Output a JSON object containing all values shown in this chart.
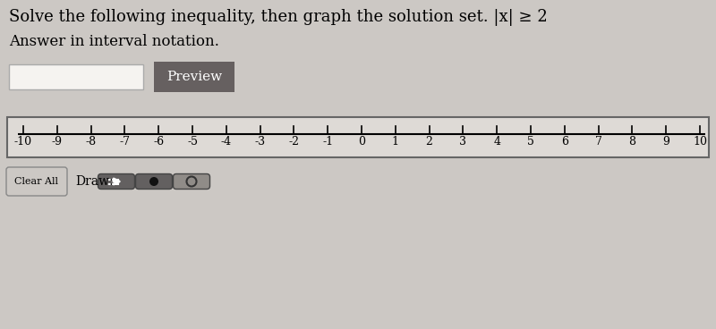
{
  "title": "Solve the following inequality, then graph the solution set. |x| ≥ 2",
  "subtitle": "Answer in interval notation.",
  "bg_color": "#ccc8c4",
  "number_line_bg": "#dedad6",
  "number_line_border": "#666666",
  "tick_values": [
    -10,
    -9,
    -8,
    -7,
    -6,
    -5,
    -4,
    -3,
    -2,
    -1,
    0,
    1,
    2,
    3,
    4,
    5,
    6,
    7,
    8,
    9,
    10
  ],
  "tick_labels": [
    "-10",
    "-9",
    "-8",
    "-7",
    "-6",
    "-5",
    "-4",
    "-3",
    "-2",
    "-1",
    "0",
    "1",
    "2",
    "3",
    "4",
    "5",
    "6",
    "7",
    "8",
    "9",
    "10"
  ],
  "input_box_color": "#f5f3f0",
  "input_box_border": "#aaaaaa",
  "preview_btn_color": "#666060",
  "preview_btn_text": "Preview",
  "preview_btn_text_color": "#ffffff",
  "clear_all_btn_text": "Clear All",
  "draw_label": "Draw:",
  "arrow_btn_color": "#636060",
  "dot_btn_color": "#636060",
  "open_dot_btn_color": "#908c88",
  "font_size_title": 13,
  "font_size_subtitle": 12,
  "font_size_ticks": 9,
  "font_size_btn": 9
}
